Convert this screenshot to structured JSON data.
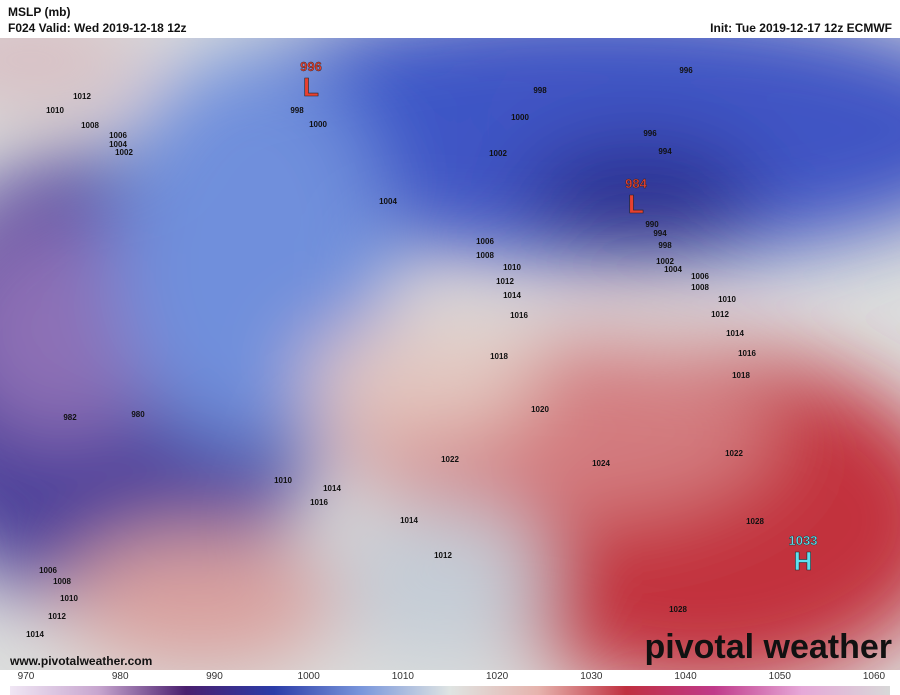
{
  "header": {
    "title": "MSLP (mb)",
    "valid": "F024 Valid: Wed 2019-12-18 12z",
    "init": "Init: Tue 2019-12-17 12z ECMWF"
  },
  "centers": [
    {
      "value": "996",
      "label": "L"
    },
    {
      "value": "984",
      "label": "L"
    },
    {
      "value": "1033",
      "label": "H"
    }
  ],
  "contour_labels": [
    1012,
    1010,
    1008,
    1006,
    1004,
    1002,
    998,
    1000,
    996,
    998,
    1000,
    1002,
    1004,
    996,
    994,
    990,
    994,
    998,
    1002,
    1004,
    1006,
    1008,
    1010,
    1012,
    1014,
    1016,
    1006,
    1008,
    1010,
    1012,
    1014,
    1016,
    1018,
    1018,
    1020,
    1022,
    1024,
    1022,
    982,
    980,
    1010,
    1014,
    1016,
    1014,
    1012,
    1006,
    1008,
    1010,
    1012,
    1014,
    1028,
    1028
  ],
  "colorbar_ticks": [
    970,
    980,
    990,
    1000,
    1010,
    1020,
    1030,
    1040,
    1050,
    1060
  ],
  "footer": {
    "website": "www.pivotalweather.com",
    "watermark": "pivotal weather"
  }
}
